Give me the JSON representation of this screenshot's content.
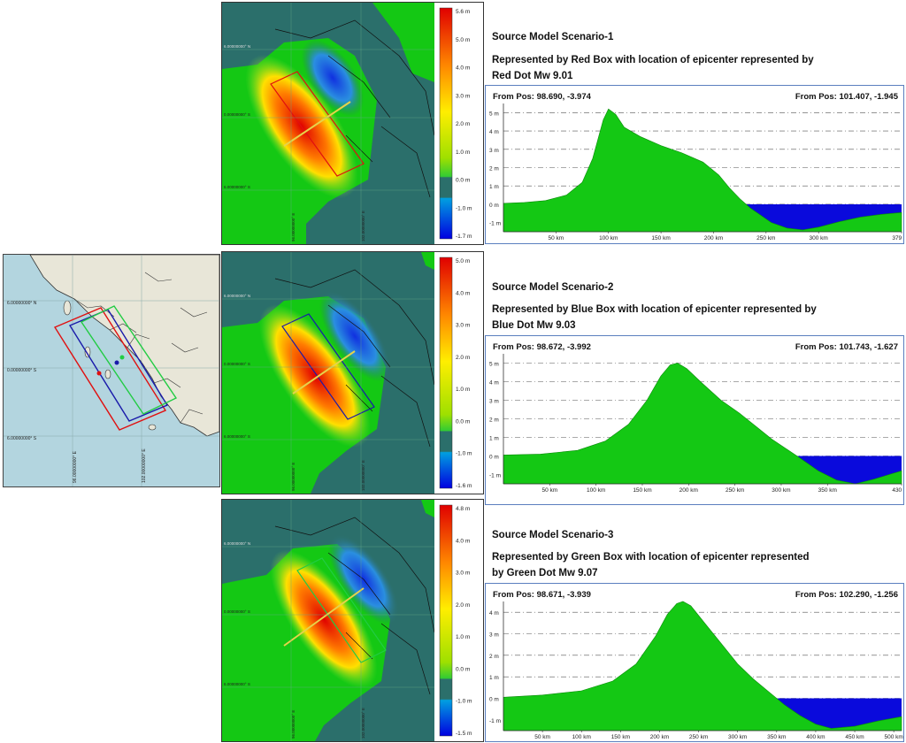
{
  "colors": {
    "sea": "#2b6f6b",
    "positive": "#14c814",
    "negative": "#0a0adc",
    "box_red": "#e01010",
    "box_blue": "#1a1aaa",
    "box_green": "#22cc44"
  },
  "overview_map": {
    "lat_labels": [
      "6.00000000° N",
      "0.00000000° S",
      "6.00000000° S"
    ],
    "lon_labels": [
      "96.00000000° E",
      "102.00000000° E"
    ]
  },
  "scenarios": [
    {
      "title": "Source Model Scenario-1",
      "description": "Represented by Red Box with location of epicenter represented by Red Dot Mw 9.01",
      "from_pos_left": "From Pos: 98.690, -3.974",
      "from_pos_right": "From Pos: 101.407, -1.945",
      "colorbar_labels": [
        "5.6 m",
        "5.0 m",
        "4.0 m",
        "3.0 m",
        "2.0 m",
        "1.0 m",
        "0.0 m",
        "-1.0 m",
        "-1.7 m"
      ],
      "map_lat_labels": [
        "6.00000000° N",
        "0.00000000° S",
        "6.00000000° S"
      ],
      "map_lon_labels": [
        "96.00000000° E",
        "102.00000000° E"
      ]
    },
    {
      "title": "Source Model Scenario-2",
      "description": "Represented by Blue Box with location of epicenter represented by Blue Dot Mw 9.03",
      "from_pos_left": "From Pos: 98.672, -3.992",
      "from_pos_right": "From Pos: 101.743, -1.627",
      "colorbar_labels": [
        "5.0 m",
        "4.0 m",
        "3.0 m",
        "2.0 m",
        "1.0 m",
        "0.0 m",
        "-1.0 m",
        "-1.6 m"
      ],
      "map_lat_labels": [
        "6.00000000° N",
        "0.00000000° S",
        "6.00000000° S"
      ],
      "map_lon_labels": [
        "96.00000000° E",
        "102.00000000° E"
      ]
    },
    {
      "title": "Source Model Scenario-3",
      "description": "Represented by Green Box with location of epicenter represented by Green Dot Mw 9.07",
      "from_pos_left": "From Pos: 98.671, -3.939",
      "from_pos_right": "From Pos: 102.290, -1.256",
      "colorbar_labels": [
        "4.8 m",
        "4.0 m",
        "3.0 m",
        "2.0 m",
        "1.0 m",
        "0.0 m",
        "-1.0 m",
        "-1.5 m"
      ],
      "map_lat_labels": [
        "6.00000000° N",
        "0.00000000° S",
        "6.00000000° S"
      ],
      "map_lon_labels": [
        "96.00000000° E",
        "102.00000000° E"
      ]
    }
  ],
  "chart_data": [
    {
      "type": "area",
      "xlabel": "",
      "ylabel": "",
      "x_tick_labels": [
        "50 km",
        "100 km",
        "150 km",
        "200 km",
        "250 km",
        "300 km",
        "379 km"
      ],
      "y_tick_labels": [
        "5 m",
        "4 m",
        "3 m",
        "2 m",
        "1 m",
        "0 m",
        "-1 m"
      ],
      "xlim": [
        0,
        379
      ],
      "ylim": [
        -1.5,
        5.5
      ],
      "series": [
        {
          "x": [
            0,
            20,
            40,
            60,
            75,
            85,
            95,
            100,
            107,
            115,
            130,
            150,
            170,
            190,
            205,
            215,
            225,
            235,
            245,
            255,
            270,
            285,
            300,
            320,
            340,
            360,
            379
          ],
          "values": [
            0.05,
            0.1,
            0.2,
            0.5,
            1.2,
            2.5,
            4.6,
            5.2,
            4.9,
            4.2,
            3.7,
            3.2,
            2.8,
            2.3,
            1.6,
            0.9,
            0.3,
            -0.2,
            -0.6,
            -1.0,
            -1.3,
            -1.4,
            -1.25,
            -0.95,
            -0.7,
            -0.55,
            -0.45
          ]
        }
      ]
    },
    {
      "type": "area",
      "xlabel": "",
      "ylabel": "",
      "x_tick_labels": [
        "50 km",
        "100 km",
        "150 km",
        "200 km",
        "250 km",
        "300 km",
        "350 km",
        "430 km"
      ],
      "y_tick_labels": [
        "5 m",
        "4 m",
        "3 m",
        "2 m",
        "1 m",
        "0 m",
        "-1 m"
      ],
      "xlim": [
        0,
        430
      ],
      "ylim": [
        -1.5,
        5.5
      ],
      "series": [
        {
          "x": [
            0,
            40,
            80,
            110,
            135,
            155,
            170,
            180,
            188,
            198,
            215,
            235,
            255,
            275,
            290,
            305,
            320,
            340,
            360,
            380,
            400,
            420,
            430
          ],
          "values": [
            0.05,
            0.1,
            0.3,
            0.8,
            1.7,
            3.0,
            4.3,
            4.9,
            5.0,
            4.7,
            3.9,
            3.0,
            2.3,
            1.5,
            0.9,
            0.4,
            -0.1,
            -0.8,
            -1.3,
            -1.5,
            -1.25,
            -0.95,
            -0.8
          ]
        }
      ]
    },
    {
      "type": "area",
      "xlabel": "",
      "ylabel": "",
      "x_tick_labels": [
        "50 km",
        "100 km",
        "150 km",
        "200 km",
        "250 km",
        "300 km",
        "350 km",
        "400 km",
        "450 km",
        "500 km"
      ],
      "y_tick_labels": [
        "4 m",
        "3 m",
        "2 m",
        "1 m",
        "0 m",
        "-1 m"
      ],
      "xlim": [
        0,
        510
      ],
      "ylim": [
        -1.5,
        4.5
      ],
      "series": [
        {
          "x": [
            0,
            50,
            100,
            140,
            170,
            195,
            210,
            222,
            230,
            240,
            260,
            280,
            300,
            320,
            340,
            360,
            380,
            400,
            420,
            450,
            480,
            510
          ],
          "values": [
            0.05,
            0.15,
            0.35,
            0.8,
            1.6,
            2.9,
            3.9,
            4.4,
            4.5,
            4.3,
            3.4,
            2.5,
            1.6,
            0.9,
            0.3,
            -0.3,
            -0.8,
            -1.2,
            -1.4,
            -1.3,
            -1.05,
            -0.85
          ]
        }
      ]
    }
  ]
}
